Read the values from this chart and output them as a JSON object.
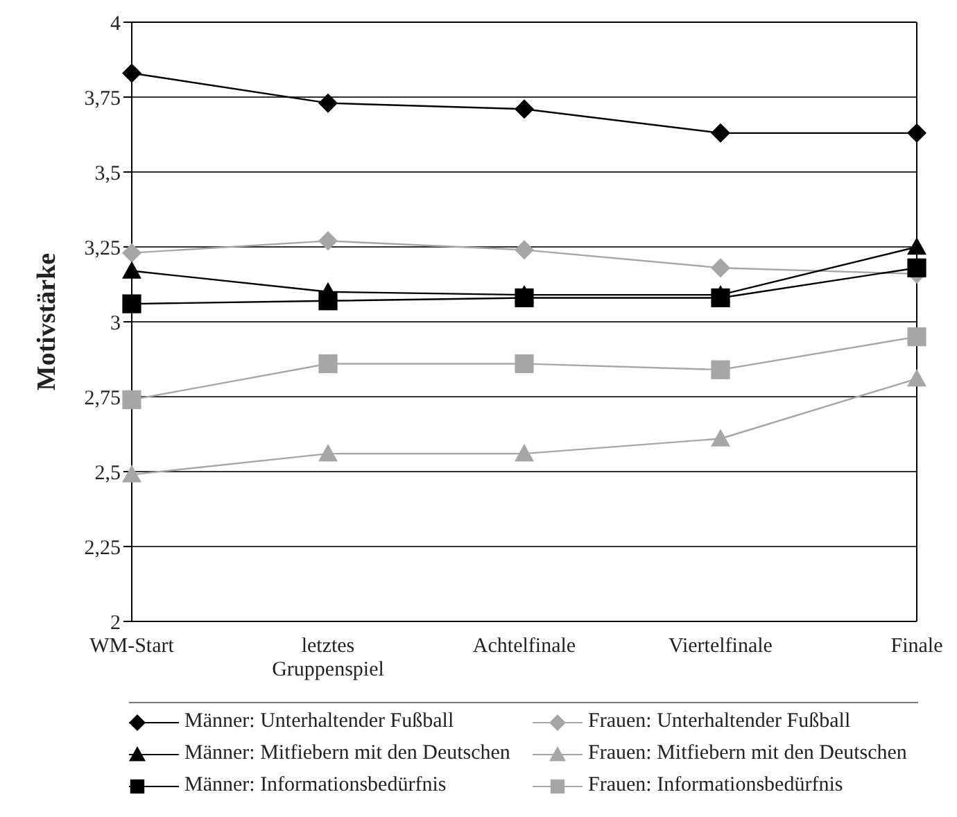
{
  "chart_data": {
    "type": "line",
    "ylabel": "Motivstärke",
    "categories": [
      "WM-Start",
      "letztes Gruppenspiel",
      "Achtelfinale",
      "Viertelfinale",
      "Finale"
    ],
    "series": [
      {
        "name": "Männer: Unterhaltender Fußball",
        "color": "#000000",
        "marker": "diamond",
        "values": [
          3.83,
          3.73,
          3.71,
          3.63,
          3.63
        ]
      },
      {
        "name": "Frauen: Unterhaltender Fußball",
        "color": "#a6a6a6",
        "marker": "diamond",
        "values": [
          3.23,
          3.27,
          3.24,
          3.18,
          3.16
        ]
      },
      {
        "name": "Männer: Mitfiebern mit den Deutschen",
        "color": "#000000",
        "marker": "triangle",
        "values": [
          3.17,
          3.1,
          3.09,
          3.09,
          3.25
        ]
      },
      {
        "name": "Frauen: Mitfiebern mit den Deutschen",
        "color": "#a6a6a6",
        "marker": "triangle",
        "values": [
          2.49,
          2.56,
          2.56,
          2.61,
          2.81
        ]
      },
      {
        "name": "Männer: Informationsbedürfnis",
        "color": "#000000",
        "marker": "square",
        "values": [
          3.06,
          3.07,
          3.08,
          3.08,
          3.18
        ]
      },
      {
        "name": "Frauen: Informationsbedürfnis",
        "color": "#a6a6a6",
        "marker": "square",
        "values": [
          2.74,
          2.86,
          2.86,
          2.84,
          2.95
        ]
      }
    ],
    "ylim": [
      2,
      4
    ],
    "yticks": [
      2,
      {
        "value": 2.25,
        "label": "2,25"
      },
      {
        "value": 2.5,
        "label": "2,5"
      },
      {
        "value": 2.75,
        "label": "2,75"
      },
      3,
      {
        "value": 3.25,
        "label": "3,25"
      },
      {
        "value": 3.5,
        "label": "3,5"
      },
      {
        "value": 3.75,
        "label": "3,75"
      },
      4
    ],
    "grid": "y",
    "legend": "bottom",
    "line_style": "solid"
  }
}
